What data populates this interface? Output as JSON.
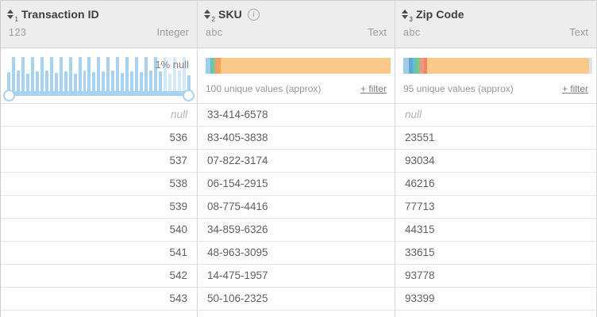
{
  "columns": [
    {
      "name": "Transaction ID",
      "sort_rank": "1",
      "type_abbrev": "123",
      "type_label": "Integer",
      "viz": {
        "type": "histogram",
        "null_label": "1% null",
        "bar_color": "#a7d3f0",
        "bar_color_light": "#d3e9f8",
        "slider_color": "#a7d3f0",
        "bar_heights": [
          0.58,
          1,
          0.62,
          1,
          0.55,
          1,
          0.6,
          1,
          0.63,
          1,
          0.57,
          1,
          0.61,
          1,
          0.55,
          1,
          0.62,
          1,
          0.58,
          1,
          0.6,
          1,
          0.63,
          1,
          0.56,
          1,
          0.61,
          1,
          0.58,
          1,
          0.62,
          1,
          0.6,
          1,
          0.55,
          1,
          0.62,
          1,
          0.5
        ],
        "light_start": 33,
        "light_end": 37
      },
      "rows": [
        "null",
        "536",
        "537",
        "538",
        "539",
        "540",
        "541",
        "542",
        "543"
      ]
    },
    {
      "name": "SKU",
      "sort_rank": "2",
      "type_abbrev": "abc",
      "type_label": "Text",
      "viz": {
        "type": "category-bar",
        "unique_label": "100 unique values (approx)",
        "filter_label": "+ filter",
        "segments": [
          {
            "color": "#9fcde9",
            "px": 6
          },
          {
            "color": "#62c4bc",
            "px": 3
          },
          {
            "color": "#82c87e",
            "px": 3
          },
          {
            "color": "#f2968c",
            "px": 3
          },
          {
            "color": "#f7a44f",
            "px": 4
          },
          {
            "color": "#fbca8b",
            "px": -1
          }
        ]
      },
      "rows": [
        "33-414-6578",
        "83-405-3838",
        "07-822-3174",
        "06-154-2915",
        "08-775-4416",
        "34-859-6326",
        "48-963-3095",
        "14-475-1957",
        "50-106-2325"
      ]
    },
    {
      "name": "Zip Code",
      "sort_rank": "3",
      "type_abbrev": "abc",
      "type_label": "Text",
      "viz": {
        "type": "category-bar",
        "unique_label": "95 unique values (approx)",
        "filter_label": "+ filter",
        "segments": [
          {
            "color": "#9fcde9",
            "px": 7
          },
          {
            "color": "#62a8d4",
            "px": 5
          },
          {
            "color": "#62c4bc",
            "px": 5
          },
          {
            "color": "#82c87e",
            "px": 4
          },
          {
            "color": "#f2968c",
            "px": 5
          },
          {
            "color": "#ef8a5e",
            "px": 4
          },
          {
            "color": "#fbca8b",
            "px": -1
          },
          {
            "color": "#e2e2e2",
            "px": 4
          }
        ]
      },
      "rows": [
        "null",
        "23551",
        "93034",
        "46216",
        "77713",
        "44315",
        "33615",
        "93778",
        "93399"
      ]
    }
  ],
  "icons": {
    "info": "i"
  }
}
